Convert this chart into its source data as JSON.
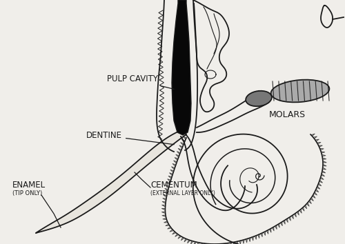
{
  "figsize": [
    5.0,
    3.54
  ],
  "dpi": 100,
  "bg_color": "#f0eeea",
  "line_color": "#1a1a1a",
  "fill_black": "#080808",
  "fill_gray_dark": "#777777",
  "fill_gray_light": "#aaaaaa",
  "fill_tusk": "#e8e5de",
  "fill_white": "#f5f3ef",
  "labels": {
    "pulp_cavity": "PULP CAVITY",
    "molars": "MOLARS",
    "dentine": "DENTINE",
    "enamel": "ENAMEL",
    "enamel_sub": "(TIP ONLY)",
    "cementum": "CEMENTUM",
    "cementum_sub": "(EXTERNAL LAYER ONLY)"
  }
}
